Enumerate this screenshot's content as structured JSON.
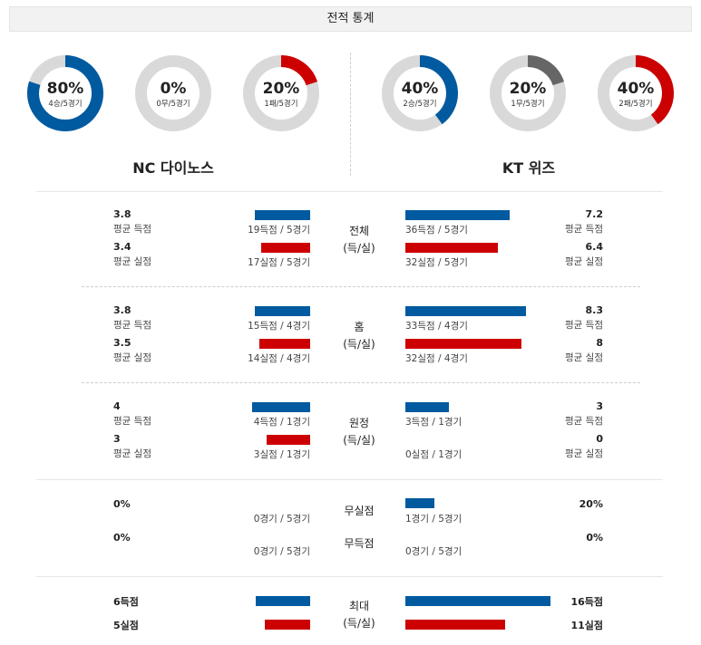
{
  "header": {
    "title": "전적 통계"
  },
  "colors": {
    "blue": "#005aa0",
    "red": "#cc0000",
    "gray": "#666666",
    "track": "#d9d9d9"
  },
  "teams": {
    "left": {
      "name": "NC 다이노스",
      "donuts": [
        {
          "pct": "80%",
          "sub": "4승/5경기",
          "value": 0.8,
          "color": "#005aa0"
        },
        {
          "pct": "0%",
          "sub": "0무/5경기",
          "value": 0.0,
          "color": "#666666"
        },
        {
          "pct": "20%",
          "sub": "1패/5경기",
          "value": 0.2,
          "color": "#cc0000"
        }
      ]
    },
    "right": {
      "name": "KT 위즈",
      "donuts": [
        {
          "pct": "40%",
          "sub": "2승/5경기",
          "value": 0.4,
          "color": "#005aa0"
        },
        {
          "pct": "20%",
          "sub": "1무/5경기",
          "value": 0.2,
          "color": "#666666"
        },
        {
          "pct": "40%",
          "sub": "2패/5경기",
          "value": 0.4,
          "color": "#cc0000"
        }
      ]
    }
  },
  "labels": {
    "avg_score": "평균 득점",
    "avg_allowed": "평균 실점"
  },
  "sections": {
    "total": {
      "cat1": "전체",
      "cat2": "(득/실)",
      "left": {
        "score": "3.8",
        "score_count": "19득점 / 5경기",
        "score_value": 3.8,
        "allowed": "3.4",
        "allowed_count": "17실점 / 5경기",
        "allowed_value": 3.4
      },
      "right": {
        "score": "7.2",
        "score_count": "36득점 / 5경기",
        "score_value": 7.2,
        "allowed": "6.4",
        "allowed_count": "32실점 / 5경기",
        "allowed_value": 6.4
      }
    },
    "home": {
      "cat1": "홈",
      "cat2": "(득/실)",
      "left": {
        "score": "3.8",
        "score_count": "15득점 / 4경기",
        "score_value": 3.8,
        "allowed": "3.5",
        "allowed_count": "14실점 / 4경기",
        "allowed_value": 3.5
      },
      "right": {
        "score": "8.3",
        "score_count": "33득점 / 4경기",
        "score_value": 8.3,
        "allowed": "8",
        "allowed_count": "32실점 / 4경기",
        "allowed_value": 8
      }
    },
    "away": {
      "cat1": "원정",
      "cat2": "(득/실)",
      "left": {
        "score": "4",
        "score_count": "4득점 / 1경기",
        "score_value": 4,
        "allowed": "3",
        "allowed_count": "3실점 / 1경기",
        "allowed_value": 3
      },
      "right": {
        "score": "3",
        "score_count": "3득점 / 1경기",
        "score_value": 3,
        "allowed": "0",
        "allowed_count": "0실점 / 1경기",
        "allowed_value": 0
      }
    },
    "shutout": {
      "cat_a": "무실점",
      "cat_b": "무득점",
      "left": {
        "a_pct": "0%",
        "a_count": "0경기 / 5경기",
        "a_value": 0,
        "b_pct": "0%",
        "b_count": "0경기 / 5경기",
        "b_value": 0
      },
      "right": {
        "a_pct": "20%",
        "a_count": "1경기 / 5경기",
        "a_value": 0.2,
        "b_pct": "0%",
        "b_count": "0경기 / 5경기",
        "b_value": 0
      }
    },
    "max": {
      "cat1": "최대",
      "cat2": "(득/실)",
      "left": {
        "score": "6득점",
        "score_value": 6,
        "allowed": "5실점",
        "allowed_value": 5
      },
      "right": {
        "score": "16득점",
        "score_value": 16,
        "allowed": "11실점",
        "allowed_value": 11
      }
    }
  }
}
